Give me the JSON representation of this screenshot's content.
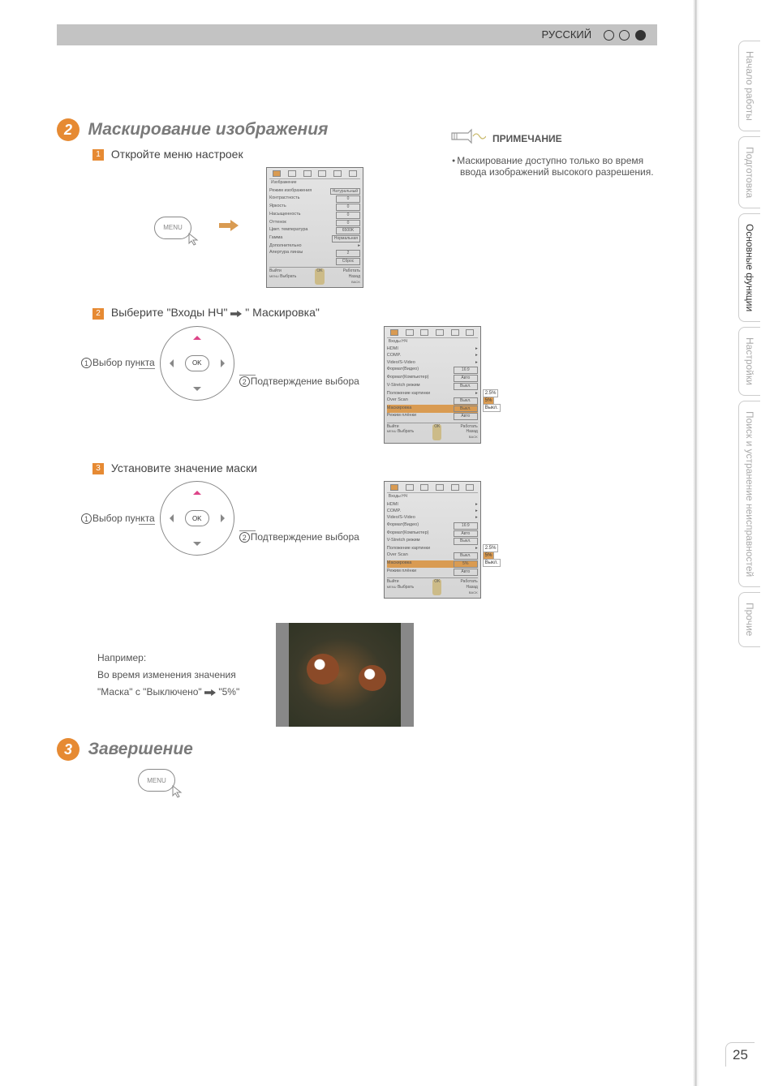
{
  "header": {
    "lang": "РУССКИЙ"
  },
  "section2": {
    "num": "2",
    "title": "Маскирование изображения",
    "step1": {
      "num": "1",
      "text": "Откройте меню настроек",
      "menu_label": "MENU"
    },
    "step2": {
      "num": "2",
      "text_a": "Выберите \"Входы НЧ\"",
      "text_b": "\" Маскировка\"",
      "ptr1_label": "Выбор пункта",
      "ptr2_label": "Подтверждение выбора",
      "ok_label": "OK"
    },
    "step3": {
      "num": "3",
      "text": "Установите значение маски",
      "ptr1_label": "Выбор пункта",
      "ptr2_label": "Подтверждение выбора",
      "ok_label": "OK"
    },
    "example": {
      "heading": "Например:",
      "line1": "Во время изменения значения",
      "line2_a": "\"Маска\" с \"Выключено\"",
      "line2_b": "\"5%\""
    }
  },
  "osd1": {
    "tab_label": "Изображение",
    "rows": [
      {
        "l": "Режим изображения",
        "v": "Натуральный"
      },
      {
        "l": "Контрастность",
        "v": "0"
      },
      {
        "l": "Яркость",
        "v": "0"
      },
      {
        "l": "Насыщенность",
        "v": "0"
      },
      {
        "l": "Оттенок",
        "v": "0"
      },
      {
        "l": "Цвет. температура",
        "v": "6500K"
      },
      {
        "l": "Гамма",
        "v": "Нормальная"
      },
      {
        "l": "Дополнительно",
        "v": ""
      },
      {
        "l": "Апертура линзы",
        "v": "2"
      },
      {
        "l": "",
        "v": "Сброс"
      }
    ],
    "bottom": {
      "exit": "Выйти",
      "sel": "Выбрать",
      "op": "Работать",
      "back": "Назад"
    }
  },
  "osd2": {
    "tab_label": "Входы НЧ",
    "rows": [
      {
        "l": "HDMI",
        "v": ""
      },
      {
        "l": "COMP.",
        "v": ""
      },
      {
        "l": "Video/S-Video",
        "v": ""
      },
      {
        "l": "Формат(Видео)",
        "v": "16:9"
      },
      {
        "l": "Формат(Компьютер)",
        "v": "Авто"
      },
      {
        "l": "V-Stretch режим",
        "v": "Выкл."
      },
      {
        "l": "Положение картинки",
        "v": ""
      },
      {
        "l": "Over Scan",
        "v": "Выкл."
      },
      {
        "l": "Маскировка",
        "v": "Выкл.",
        "sel": true
      },
      {
        "l": "Режим плёнки",
        "v": "Авто"
      }
    ],
    "callouts": [
      "2.5%",
      "5%",
      "Выкл."
    ],
    "bottom": {
      "exit": "Выйти",
      "sel": "Выбрать",
      "op": "Работать",
      "back": "Назад"
    }
  },
  "osd3": {
    "tab_label": "Входы НЧ",
    "rows": [
      {
        "l": "HDMI",
        "v": ""
      },
      {
        "l": "COMP.",
        "v": ""
      },
      {
        "l": "Video/S-Video",
        "v": ""
      },
      {
        "l": "Формат(Видео)",
        "v": "16:9"
      },
      {
        "l": "Формат(Компьютер)",
        "v": "Авто"
      },
      {
        "l": "V-Stretch режим",
        "v": "Выкл."
      },
      {
        "l": "Положение картинки",
        "v": ""
      },
      {
        "l": "Over Scan",
        "v": "Выкл."
      },
      {
        "l": "Маскировка",
        "v": "5%",
        "sel": true
      },
      {
        "l": "Режим плёнки",
        "v": "Авто"
      }
    ],
    "callouts": [
      "2.5%",
      "5%",
      "Выкл."
    ],
    "bottom": {
      "exit": "Выйти",
      "sel": "Выбрать",
      "op": "Работать",
      "back": "Назад"
    }
  },
  "section3": {
    "num": "3",
    "title": "Завершение",
    "menu_label": "MENU"
  },
  "note": {
    "heading": "ПРИМЕЧАНИЕ",
    "body": "Маскирование доступно только во время ввода изображений высокого разрешения."
  },
  "tabs": [
    {
      "label": "Начало работы",
      "active": false
    },
    {
      "label": "Подготовка",
      "active": false
    },
    {
      "label": "Основные функции",
      "active": true
    },
    {
      "label": "Настройки",
      "active": false
    },
    {
      "label": "Поиск и устранение неисправностей",
      "active": false
    },
    {
      "label": "Прочие",
      "active": false
    }
  ],
  "page_number": "25"
}
